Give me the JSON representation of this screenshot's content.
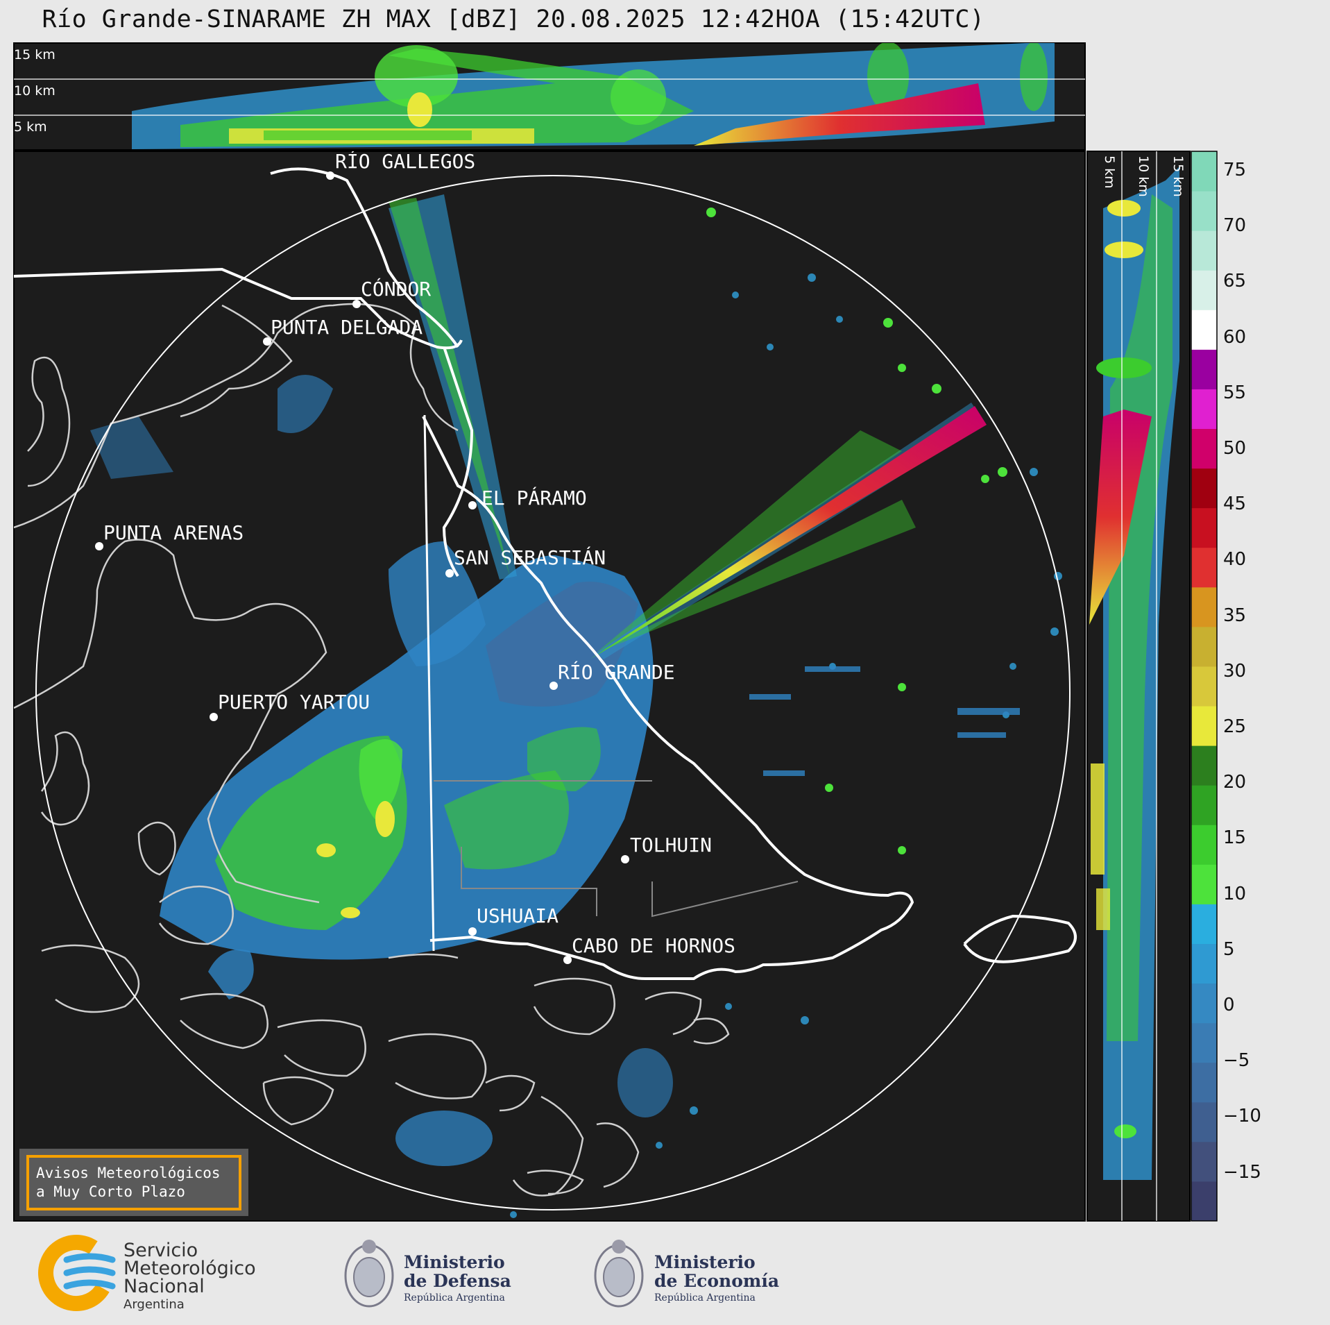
{
  "title": "Río Grande-SINARAME ZH MAX [dBZ] 20.08.2025 12:42HOA (15:42UTC)",
  "top_panel": {
    "levels": [
      "15 km",
      "10 km",
      "5 km"
    ]
  },
  "side_panel": {
    "levels": [
      "5 km",
      "10 km",
      "15 km"
    ]
  },
  "colorbar": {
    "ticks": [
      "75",
      "70",
      "65",
      "60",
      "55",
      "50",
      "45",
      "40",
      "35",
      "30",
      "25",
      "20",
      "15",
      "10",
      "5",
      "0",
      "−5",
      "−10",
      "−15"
    ],
    "colors": [
      "#3b3f6b",
      "#42507c",
      "#3f5f90",
      "#3d6ea3",
      "#3a7cb4",
      "#3589c2",
      "#2f9ad2",
      "#2aaedf",
      "#4de23b",
      "#3ccc2e",
      "#2fa323",
      "#2c7f1e",
      "#e8e83a",
      "#d8c83a",
      "#c8b030",
      "#d8951f",
      "#e03030",
      "#c81020",
      "#a00010",
      "#d0006a",
      "#e020d0",
      "#9a00a0",
      "#ffffff",
      "#d8f0e8",
      "#b8e8d8",
      "#98e0c8",
      "#80d8b8"
    ]
  },
  "cities": [
    {
      "name": "RÍO GALLEGOS"
    },
    {
      "name": "CÓNDOR"
    },
    {
      "name": "PUNTA DELGADA"
    },
    {
      "name": "EL PÁRAMO"
    },
    {
      "name": "PUNTA ARENAS"
    },
    {
      "name": "SAN SEBASTIÁN"
    },
    {
      "name": "RÍO GRANDE"
    },
    {
      "name": "PUERTO YARTOU"
    },
    {
      "name": "TOLHUIN"
    },
    {
      "name": "USHUAIA"
    },
    {
      "name": "CABO DE HORNOS"
    }
  ],
  "avisos": {
    "line1": "Avisos Meteorológicos",
    "line2": "a Muy Corto Plazo"
  },
  "footer": {
    "smn": {
      "line1": "Servicio",
      "line2": "Meteorológico",
      "line3": "Nacional",
      "line4": "Argentina"
    },
    "defensa": {
      "line1": "Ministerio",
      "line2": "de Defensa",
      "line3": "República Argentina"
    },
    "economia": {
      "line1": "Ministerio",
      "line2": "de Economía",
      "line3": "República Argentina"
    }
  }
}
